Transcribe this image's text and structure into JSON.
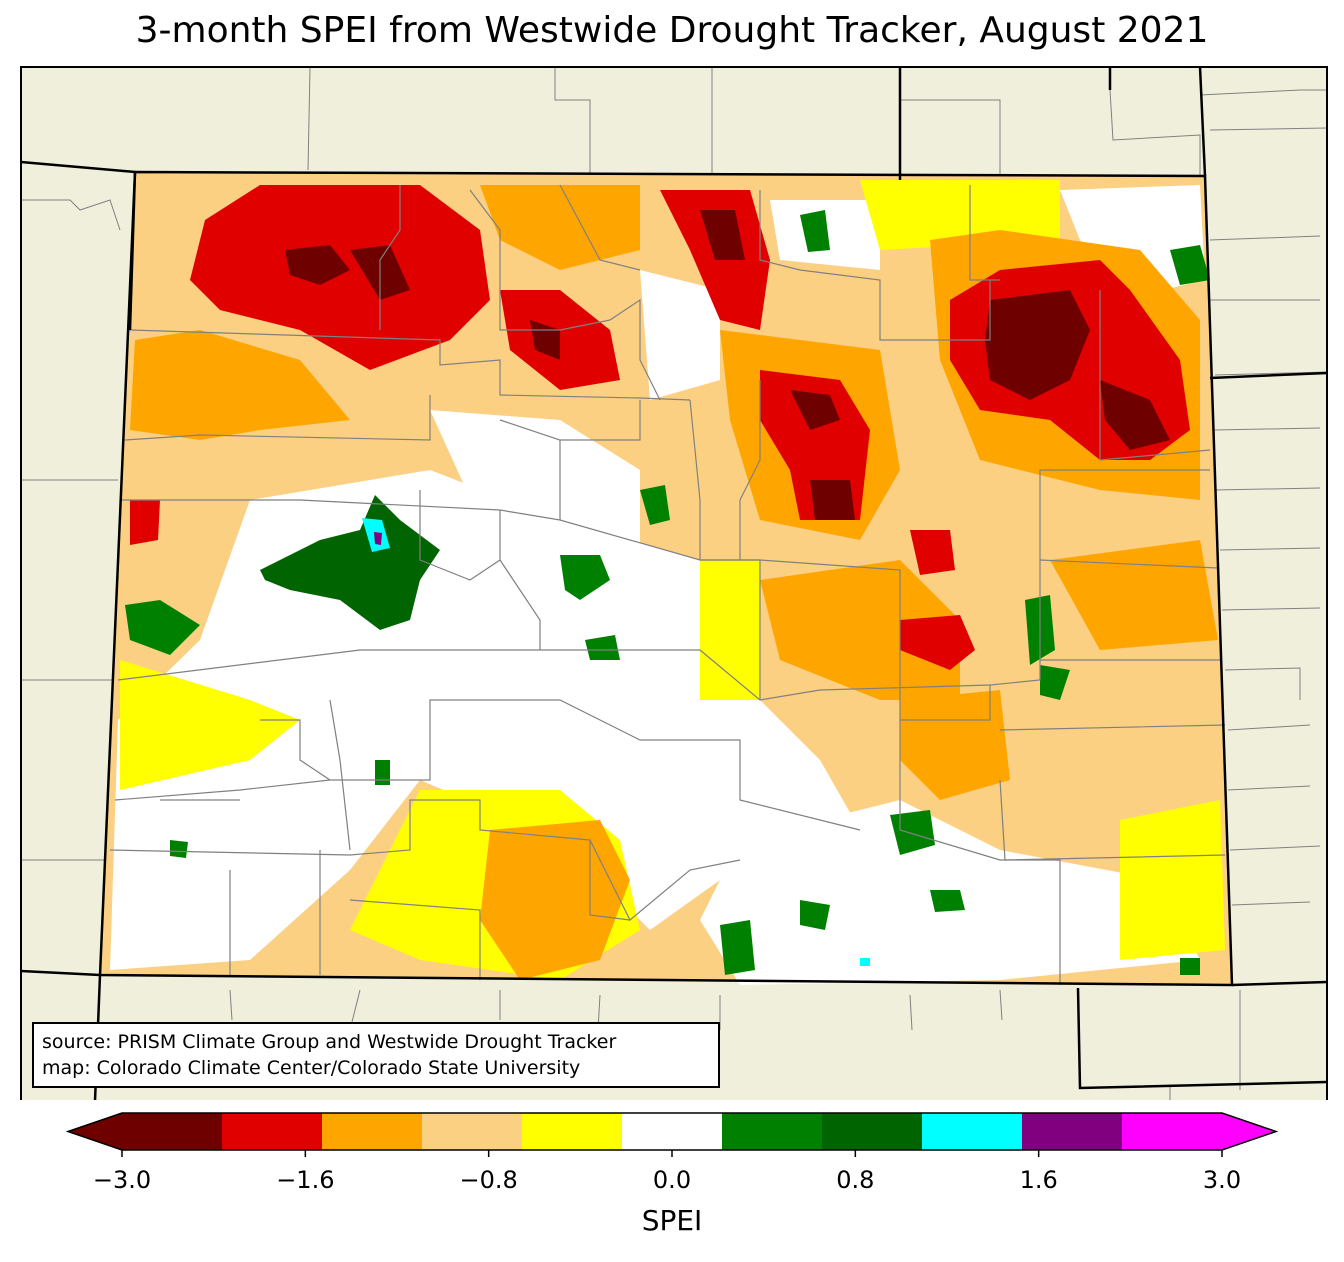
{
  "title": "3-month SPEI from Westwide Drought Tracker, August 2021",
  "source_lines": [
    "source: PRISM Climate Group and Westwide Drought Tracker",
    "map: Colorado Climate Center/Colorado State University"
  ],
  "colorbar": {
    "label": "SPEI",
    "ticks": [
      "−3.0",
      "−1.6",
      "−0.8",
      "0.0",
      "0.8",
      "1.6",
      "3.0"
    ],
    "bins": [
      {
        "range": "< -3.0",
        "color": "#6e0000"
      },
      {
        "range": "-3.0 to -2.0",
        "color": "#6e0000"
      },
      {
        "range": "-2.0 to -1.6",
        "color": "#e10000"
      },
      {
        "range": "-1.6 to -1.2",
        "color": "#ffa500"
      },
      {
        "range": "-1.2 to -0.8",
        "color": "#fbd083"
      },
      {
        "range": "-0.8 to -0.4",
        "color": "#ffff00"
      },
      {
        "range": "-0.4 to 0.4",
        "color": "#ffffff"
      },
      {
        "range": "0.4 to 0.8",
        "color": "#008000"
      },
      {
        "range": "0.8 to 1.2",
        "color": "#006400"
      },
      {
        "range": "1.2 to 1.6",
        "color": "#00ffff"
      },
      {
        "range": "1.6 to 2.0",
        "color": "#800080"
      },
      {
        "range": "2.0 to 3.0",
        "color": "#ff00ff"
      },
      {
        "range": "> 3.0",
        "color": "#ff00ff"
      }
    ]
  },
  "map": {
    "region": "Colorado",
    "background_color": "#f0efdc",
    "county_line_color": "#808080"
  }
}
